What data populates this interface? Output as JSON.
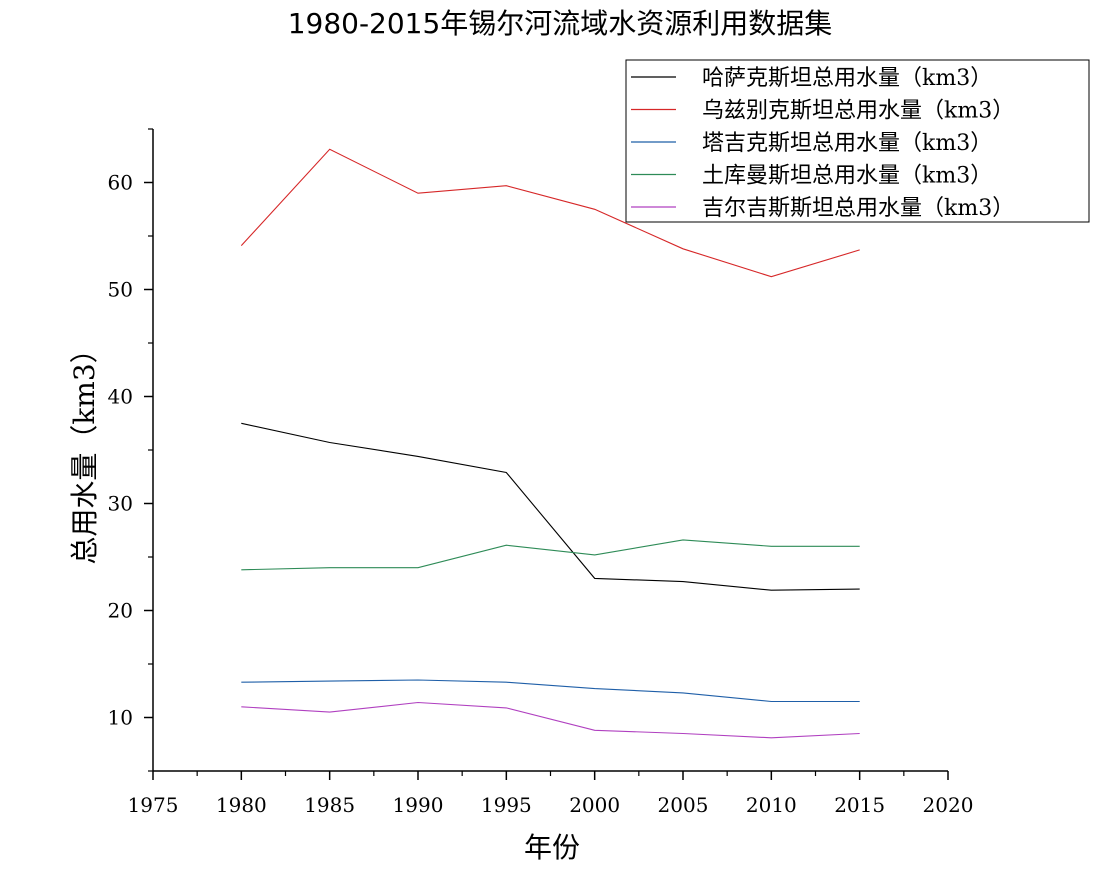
{
  "chart_data": {
    "type": "line",
    "title": "1980-2015年锡尔河流域水资源利用数据集",
    "xlabel": "年份",
    "ylabel": "总用水量（km3）",
    "xlim": [
      1975,
      2020
    ],
    "ylim": [
      5,
      65
    ],
    "xticks": [
      1975,
      1980,
      1985,
      1990,
      1995,
      2000,
      2005,
      2010,
      2015,
      2020
    ],
    "yticks": [
      10,
      20,
      30,
      40,
      50,
      60
    ],
    "legend_position": "top-right",
    "x": [
      1980,
      1985,
      1990,
      1995,
      2000,
      2005,
      2010,
      2015
    ],
    "series": [
      {
        "name": "哈萨克斯坦总用水量（km3）",
        "color": "#000000",
        "values": [
          37.5,
          35.7,
          34.4,
          32.9,
          23.0,
          22.7,
          21.9,
          22.0
        ]
      },
      {
        "name": "乌兹别克斯坦总用水量（km3）",
        "color": "#d62728",
        "values": [
          54.1,
          63.1,
          59.0,
          59.7,
          57.5,
          53.8,
          51.2,
          53.7
        ]
      },
      {
        "name": "塔吉克斯坦总用水量（km3）",
        "color": "#1f5fa8",
        "values": [
          13.3,
          13.4,
          13.5,
          13.3,
          12.7,
          12.3,
          11.5,
          11.5
        ]
      },
      {
        "name": "土库曼斯坦总用水量（km3）",
        "color": "#2e8b57",
        "values": [
          23.8,
          24.0,
          24.0,
          26.1,
          25.2,
          26.6,
          26.0,
          26.0
        ]
      },
      {
        "name": "吉尔吉斯斯坦总用水量（km3）",
        "color": "#b040c0",
        "values": [
          11.0,
          10.5,
          11.4,
          10.9,
          8.8,
          8.5,
          8.1,
          8.5
        ]
      }
    ]
  }
}
